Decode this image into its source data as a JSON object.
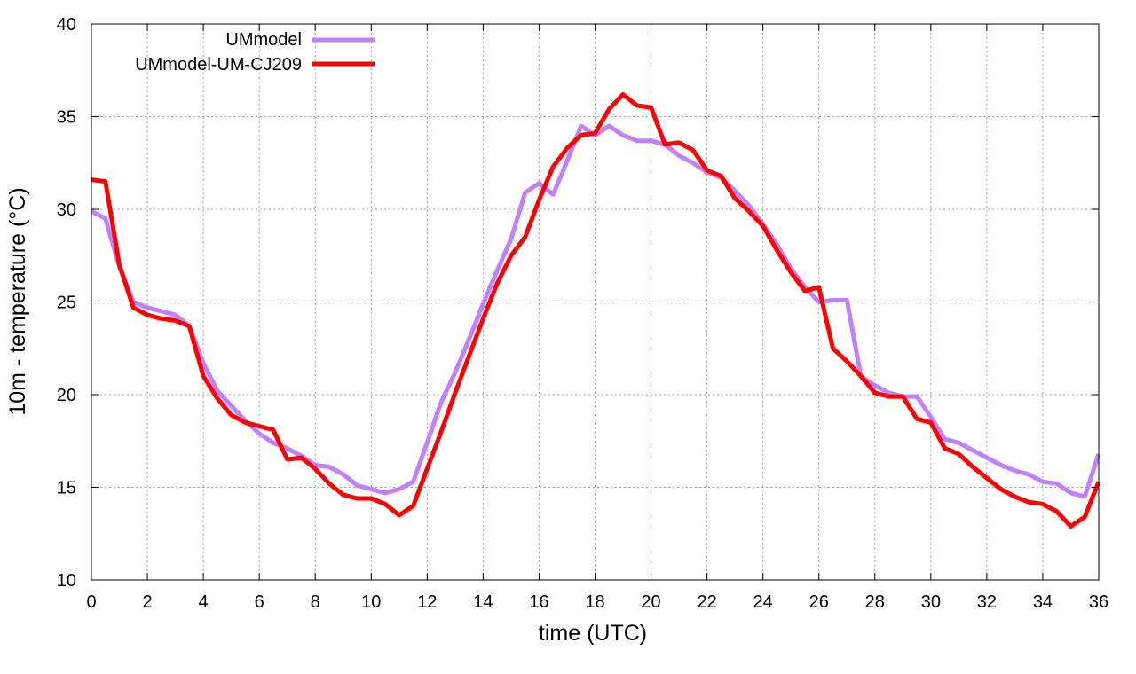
{
  "chart_data": {
    "type": "line",
    "title": "",
    "xlabel": "time (UTC)",
    "ylabel": "10m - temperature (°C)",
    "xlim": [
      0,
      36
    ],
    "ylim": [
      10,
      40
    ],
    "xticks": [
      0,
      2,
      4,
      6,
      8,
      10,
      12,
      14,
      16,
      18,
      20,
      22,
      24,
      26,
      28,
      30,
      32,
      34,
      36
    ],
    "yticks": [
      10,
      15,
      20,
      25,
      30,
      35,
      40
    ],
    "grid": true,
    "legend_position": "top-left",
    "series": [
      {
        "name": "UMmodel",
        "color": "#c080ff",
        "x": [
          0,
          0.5,
          1,
          1.5,
          2,
          2.5,
          3,
          3.5,
          4,
          4.5,
          5,
          5.5,
          6,
          6.5,
          7,
          7.5,
          8,
          8.5,
          9,
          9.5,
          10,
          10.5,
          11,
          11.5,
          12,
          12.5,
          13,
          13.5,
          14,
          14.5,
          15,
          15.5,
          16,
          16.5,
          17,
          17.5,
          18,
          18.5,
          19,
          19.5,
          20,
          20.5,
          21,
          21.5,
          22,
          22.5,
          23,
          23.5,
          24,
          24.5,
          25,
          25.5,
          26,
          26.5,
          27,
          27.5,
          28,
          28.5,
          29,
          29.5,
          30,
          30.5,
          31,
          31.5,
          32,
          32.5,
          33,
          33.5,
          34,
          34.5,
          35,
          35.5,
          36
        ],
        "y": [
          29.9,
          29.5,
          26.9,
          25.0,
          24.7,
          24.5,
          24.3,
          23.7,
          21.7,
          20.2,
          19.4,
          18.6,
          17.9,
          17.4,
          17.1,
          16.7,
          16.2,
          16.1,
          15.7,
          15.1,
          14.9,
          14.7,
          14.9,
          15.3,
          17.4,
          19.6,
          21.2,
          23.0,
          24.9,
          26.7,
          28.4,
          30.9,
          31.4,
          30.8,
          32.6,
          34.5,
          34.0,
          34.5,
          34.0,
          33.7,
          33.7,
          33.5,
          32.9,
          32.5,
          32.0,
          31.7,
          31.0,
          30.2,
          29.2,
          28.1,
          26.8,
          25.8,
          25.0,
          25.1,
          25.1,
          21.0,
          20.5,
          20.1,
          19.9,
          19.9,
          18.8,
          17.6,
          17.4,
          17.0,
          16.6,
          16.2,
          15.9,
          15.7,
          15.3,
          15.2,
          14.7,
          14.5,
          16.8
        ]
      },
      {
        "name": "UMmodel-UM-CJ209",
        "color": "#ff0000",
        "x": [
          0,
          0.5,
          1,
          1.5,
          2,
          2.5,
          3,
          3.5,
          4,
          4.5,
          5,
          5.5,
          6,
          6.5,
          7,
          7.5,
          8,
          8.5,
          9,
          9.5,
          10,
          10.5,
          11,
          11.5,
          12,
          12.5,
          13,
          13.5,
          14,
          14.5,
          15,
          15.5,
          16,
          16.5,
          17,
          17.5,
          18,
          18.5,
          19,
          19.5,
          20,
          20.5,
          21,
          21.5,
          22,
          22.5,
          23,
          23.5,
          24,
          24.5,
          25,
          25.5,
          26,
          26.5,
          27,
          27.5,
          28,
          28.5,
          29,
          29.5,
          30,
          30.5,
          31,
          31.5,
          32,
          32.5,
          33,
          33.5,
          34,
          34.5,
          35,
          35.5,
          36
        ],
        "y": [
          31.6,
          31.5,
          27.0,
          24.7,
          24.3,
          24.1,
          24.0,
          23.7,
          21.0,
          19.8,
          18.9,
          18.5,
          18.3,
          18.1,
          16.5,
          16.6,
          16.0,
          15.2,
          14.6,
          14.4,
          14.4,
          14.1,
          13.5,
          14.0,
          16.0,
          18.0,
          20.1,
          22.1,
          24.1,
          26.0,
          27.5,
          28.5,
          30.5,
          32.3,
          33.3,
          34.0,
          34.1,
          35.4,
          36.2,
          35.6,
          35.5,
          33.5,
          33.6,
          33.2,
          32.1,
          31.8,
          30.6,
          29.9,
          29.1,
          27.8,
          26.6,
          25.6,
          25.8,
          22.5,
          21.8,
          21.0,
          20.1,
          19.9,
          19.9,
          18.7,
          18.5,
          17.1,
          16.8,
          16.1,
          15.5,
          14.9,
          14.5,
          14.2,
          14.1,
          13.7,
          12.9,
          13.4,
          15.3
        ]
      }
    ]
  }
}
